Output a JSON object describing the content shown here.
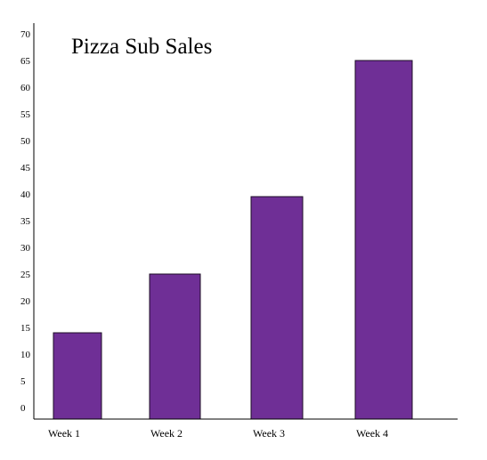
{
  "colors": {
    "bar": "#6f2f96",
    "bar_edge": "#1c0d26",
    "axis": "#000000",
    "background": "#ffffff"
  },
  "chart_data": {
    "type": "bar",
    "title": "Pizza Sub Sales",
    "xlabel": "",
    "ylabel": "",
    "categories": [
      "Week 1",
      "Week 2",
      "Week 3",
      "Week 4"
    ],
    "values": [
      14,
      25,
      39.5,
      65
    ],
    "ylim": [
      0,
      70
    ],
    "yticks": [
      "0",
      "5",
      "10",
      "15",
      "20",
      "25",
      "30",
      "35",
      "40",
      "45",
      "50",
      "55",
      "60",
      "65",
      "70"
    ],
    "grid": false,
    "legend": "none"
  }
}
